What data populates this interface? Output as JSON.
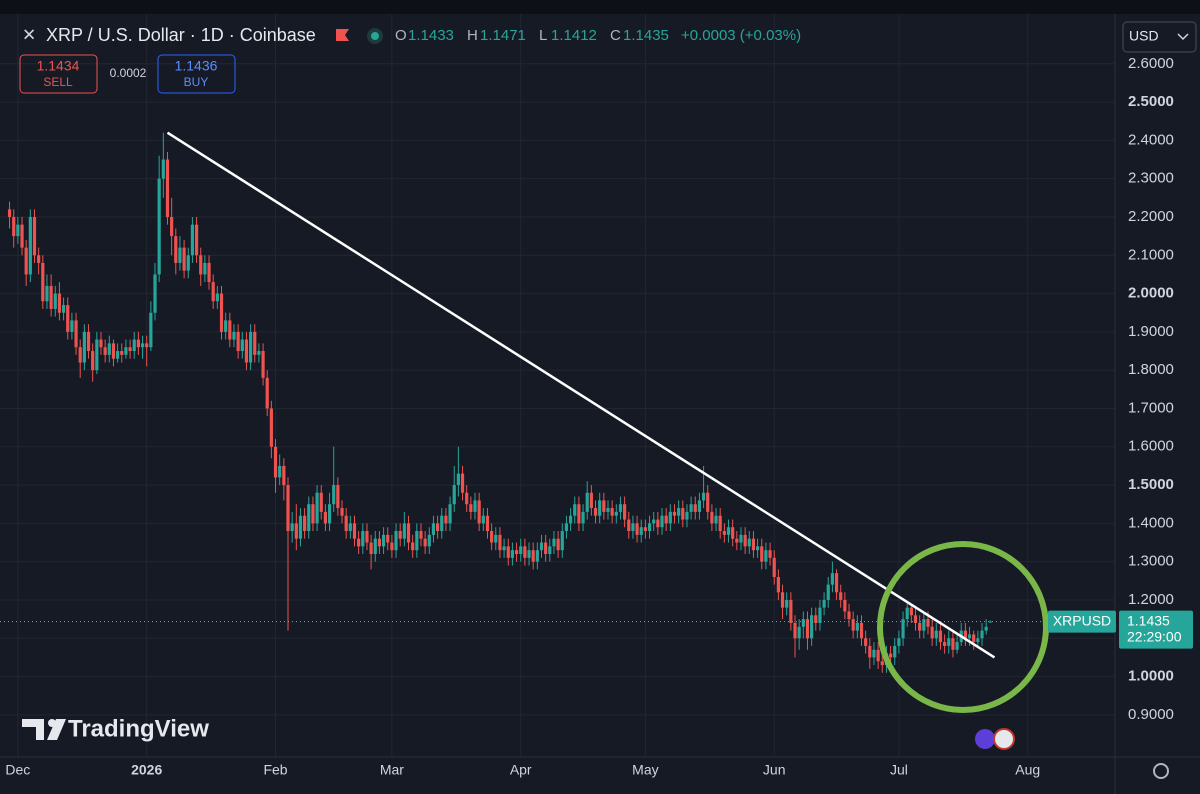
{
  "header": {
    "symbol": "XRP / U.S. Dollar · 1D · Coinbase",
    "ohlc_labels": [
      "O",
      "H",
      "L",
      "C"
    ],
    "change": "+0.0003 (+0.03%)"
  },
  "trade": {
    "sell_price": 1.1434,
    "sell_label": "SELL",
    "spread": 0.0002,
    "buy_price": 1.1436,
    "buy_label": "BUY"
  },
  "currency": "USD",
  "branding": "TradingView",
  "chart_data": {
    "type": "candlestick",
    "series": [
      {
        "name": "XRPUSD",
        "up_color": "#26a69a",
        "down_color": "#ef5350",
        "open": [
          2.22,
          2.2,
          2.15,
          2.18,
          2.12,
          2.05,
          2.2,
          2.1,
          2.08,
          1.98,
          2.02,
          1.96,
          2.0,
          1.95,
          1.97,
          1.9,
          1.93,
          1.86,
          1.82,
          1.9,
          1.85,
          1.8,
          1.88,
          1.86,
          1.84,
          1.87,
          1.83,
          1.85,
          1.84,
          1.86,
          1.85,
          1.88,
          1.86,
          1.87,
          1.86,
          1.95,
          2.05,
          2.3,
          2.35,
          2.2,
          2.15,
          2.08,
          2.12,
          2.06,
          2.1,
          2.18,
          2.1,
          2.05,
          2.08,
          2.03,
          1.98,
          2.0,
          1.9,
          1.93,
          1.88,
          1.9,
          1.85,
          1.88,
          1.82,
          1.9,
          1.84,
          1.85,
          1.78,
          1.7,
          1.6,
          1.52,
          1.55,
          1.5,
          1.38,
          1.4,
          1.36,
          1.42,
          1.38,
          1.45,
          1.4,
          1.48,
          1.43,
          1.4,
          1.45,
          1.5,
          1.44,
          1.42,
          1.38,
          1.4,
          1.36,
          1.34,
          1.38,
          1.35,
          1.32,
          1.36,
          1.34,
          1.37,
          1.35,
          1.33,
          1.38,
          1.36,
          1.4,
          1.35,
          1.33,
          1.38,
          1.36,
          1.34,
          1.37,
          1.4,
          1.38,
          1.42,
          1.4,
          1.45,
          1.5,
          1.53,
          1.48,
          1.45,
          1.43,
          1.46,
          1.4,
          1.42,
          1.38,
          1.35,
          1.37,
          1.33,
          1.34,
          1.31,
          1.33,
          1.32,
          1.34,
          1.31,
          1.33,
          1.3,
          1.33,
          1.35,
          1.32,
          1.34,
          1.36,
          1.33,
          1.38,
          1.4,
          1.42,
          1.45,
          1.4,
          1.43,
          1.48,
          1.44,
          1.42,
          1.46,
          1.43,
          1.44,
          1.42,
          1.43,
          1.45,
          1.41,
          1.38,
          1.4,
          1.37,
          1.39,
          1.38,
          1.4,
          1.41,
          1.39,
          1.42,
          1.4,
          1.43,
          1.42,
          1.44,
          1.41,
          1.43,
          1.45,
          1.43,
          1.46,
          1.48,
          1.43,
          1.4,
          1.42,
          1.38,
          1.37,
          1.39,
          1.36,
          1.35,
          1.37,
          1.34,
          1.36,
          1.33,
          1.34,
          1.3,
          1.33,
          1.31,
          1.26,
          1.22,
          1.18,
          1.2,
          1.14,
          1.1,
          1.13,
          1.15,
          1.1,
          1.16,
          1.14,
          1.18,
          1.2,
          1.24,
          1.27,
          1.22,
          1.2,
          1.17,
          1.15,
          1.12,
          1.14,
          1.1,
          1.08,
          1.05,
          1.07,
          1.04,
          1.03,
          1.06,
          1.05,
          1.08,
          1.1,
          1.15,
          1.18,
          1.16,
          1.14,
          1.12,
          1.15,
          1.13,
          1.1,
          1.12,
          1.09,
          1.08,
          1.1,
          1.07,
          1.09,
          1.12,
          1.1,
          1.11,
          1.09,
          1.1,
          1.12,
          1.1433
        ],
        "high": [
          2.24,
          2.22,
          2.2,
          2.2,
          2.14,
          2.22,
          2.22,
          2.12,
          2.1,
          2.05,
          2.05,
          2.02,
          2.03,
          1.99,
          1.99,
          1.95,
          1.95,
          1.88,
          1.92,
          1.92,
          1.87,
          1.9,
          1.9,
          1.88,
          1.89,
          1.88,
          1.87,
          1.87,
          1.88,
          1.88,
          1.9,
          1.9,
          1.89,
          1.89,
          1.98,
          2.08,
          2.36,
          2.42,
          2.37,
          2.25,
          2.17,
          2.15,
          2.14,
          2.12,
          2.2,
          2.2,
          2.12,
          2.1,
          2.1,
          2.05,
          2.02,
          2.02,
          1.95,
          1.95,
          1.92,
          1.92,
          1.9,
          1.9,
          1.92,
          1.92,
          1.87,
          1.87,
          1.8,
          1.72,
          1.62,
          1.58,
          1.57,
          1.52,
          1.43,
          1.45,
          1.44,
          1.44,
          1.47,
          1.47,
          1.5,
          1.5,
          1.45,
          1.48,
          1.6,
          1.52,
          1.46,
          1.44,
          1.42,
          1.42,
          1.38,
          1.4,
          1.4,
          1.37,
          1.38,
          1.38,
          1.39,
          1.39,
          1.37,
          1.4,
          1.4,
          1.43,
          1.42,
          1.37,
          1.4,
          1.4,
          1.38,
          1.39,
          1.42,
          1.42,
          1.44,
          1.44,
          1.47,
          1.55,
          1.6,
          1.55,
          1.5,
          1.47,
          1.48,
          1.48,
          1.44,
          1.44,
          1.4,
          1.39,
          1.39,
          1.36,
          1.36,
          1.35,
          1.35,
          1.36,
          1.36,
          1.35,
          1.35,
          1.35,
          1.37,
          1.37,
          1.36,
          1.38,
          1.38,
          1.4,
          1.42,
          1.44,
          1.47,
          1.47,
          1.45,
          1.51,
          1.5,
          1.46,
          1.48,
          1.48,
          1.46,
          1.46,
          1.45,
          1.47,
          1.47,
          1.43,
          1.42,
          1.42,
          1.41,
          1.41,
          1.42,
          1.43,
          1.43,
          1.44,
          1.44,
          1.45,
          1.45,
          1.46,
          1.46,
          1.45,
          1.47,
          1.47,
          1.48,
          1.55,
          1.5,
          1.45,
          1.44,
          1.44,
          1.4,
          1.41,
          1.41,
          1.38,
          1.39,
          1.39,
          1.38,
          1.38,
          1.36,
          1.36,
          1.35,
          1.35,
          1.33,
          1.28,
          1.24,
          1.22,
          1.22,
          1.16,
          1.15,
          1.17,
          1.17,
          1.18,
          1.18,
          1.2,
          1.22,
          1.26,
          1.3,
          1.28,
          1.24,
          1.22,
          1.19,
          1.17,
          1.16,
          1.16,
          1.12,
          1.1,
          1.09,
          1.09,
          1.06,
          1.08,
          1.08,
          1.1,
          1.12,
          1.17,
          1.19,
          1.19,
          1.18,
          1.16,
          1.17,
          1.17,
          1.15,
          1.14,
          1.14,
          1.11,
          1.12,
          1.12,
          1.11,
          1.14,
          1.14,
          1.13,
          1.12,
          1.12,
          1.14,
          1.15,
          1.1471
        ],
        "low": [
          2.17,
          2.12,
          2.13,
          2.1,
          2.02,
          2.03,
          2.08,
          2.05,
          1.96,
          1.96,
          1.94,
          1.94,
          1.93,
          1.93,
          1.88,
          1.88,
          1.84,
          1.78,
          1.8,
          1.83,
          1.77,
          1.79,
          1.84,
          1.82,
          1.82,
          1.81,
          1.82,
          1.82,
          1.83,
          1.83,
          1.83,
          1.84,
          1.83,
          1.81,
          1.85,
          1.93,
          2.03,
          2.25,
          2.18,
          2.1,
          2.05,
          2.06,
          2.04,
          2.04,
          2.08,
          2.08,
          2.02,
          2.03,
          2.01,
          1.96,
          1.96,
          1.88,
          1.88,
          1.86,
          1.86,
          1.83,
          1.83,
          1.8,
          1.8,
          1.82,
          1.82,
          1.76,
          1.68,
          1.57,
          1.48,
          1.5,
          1.46,
          1.12,
          1.35,
          1.33,
          1.34,
          1.36,
          1.36,
          1.38,
          1.38,
          1.41,
          1.38,
          1.38,
          1.43,
          1.42,
          1.4,
          1.36,
          1.36,
          1.34,
          1.32,
          1.32,
          1.33,
          1.28,
          1.3,
          1.32,
          1.32,
          1.33,
          1.31,
          1.31,
          1.34,
          1.34,
          1.33,
          1.31,
          1.31,
          1.34,
          1.32,
          1.32,
          1.35,
          1.36,
          1.36,
          1.38,
          1.38,
          1.43,
          1.47,
          1.46,
          1.43,
          1.41,
          1.41,
          1.38,
          1.38,
          1.36,
          1.33,
          1.33,
          1.31,
          1.31,
          1.29,
          1.29,
          1.3,
          1.3,
          1.29,
          1.29,
          1.28,
          1.28,
          1.31,
          1.3,
          1.3,
          1.32,
          1.31,
          1.31,
          1.36,
          1.38,
          1.4,
          1.38,
          1.38,
          1.41,
          1.42,
          1.4,
          1.4,
          1.41,
          1.41,
          1.4,
          1.4,
          1.41,
          1.39,
          1.36,
          1.36,
          1.35,
          1.35,
          1.36,
          1.36,
          1.38,
          1.37,
          1.37,
          1.38,
          1.38,
          1.4,
          1.4,
          1.39,
          1.39,
          1.41,
          1.41,
          1.41,
          1.44,
          1.41,
          1.38,
          1.38,
          1.36,
          1.35,
          1.35,
          1.34,
          1.33,
          1.33,
          1.32,
          1.32,
          1.31,
          1.31,
          1.28,
          1.28,
          1.29,
          1.24,
          1.2,
          1.15,
          1.16,
          1.12,
          1.05,
          1.07,
          1.1,
          1.07,
          1.08,
          1.12,
          1.12,
          1.16,
          1.18,
          1.22,
          1.2,
          1.18,
          1.15,
          1.13,
          1.1,
          1.1,
          1.08,
          1.06,
          1.02,
          1.03,
          1.02,
          1.01,
          1.01,
          1.03,
          1.03,
          1.06,
          1.08,
          1.13,
          1.14,
          1.12,
          1.1,
          1.1,
          1.11,
          1.08,
          1.08,
          1.07,
          1.06,
          1.06,
          1.05,
          1.06,
          1.08,
          1.08,
          1.08,
          1.07,
          1.08,
          1.08,
          1.11,
          1.1412
        ],
        "close": [
          2.2,
          2.15,
          2.18,
          2.12,
          2.05,
          2.2,
          2.1,
          2.08,
          1.98,
          2.02,
          1.96,
          2.0,
          1.95,
          1.97,
          1.9,
          1.93,
          1.86,
          1.82,
          1.9,
          1.85,
          1.8,
          1.88,
          1.86,
          1.84,
          1.87,
          1.83,
          1.85,
          1.84,
          1.86,
          1.85,
          1.88,
          1.86,
          1.87,
          1.86,
          1.95,
          2.05,
          2.3,
          2.35,
          2.2,
          2.15,
          2.08,
          2.12,
          2.06,
          2.1,
          2.18,
          2.1,
          2.05,
          2.08,
          2.03,
          1.98,
          2.0,
          1.9,
          1.93,
          1.88,
          1.9,
          1.85,
          1.88,
          1.82,
          1.9,
          1.84,
          1.85,
          1.78,
          1.7,
          1.6,
          1.52,
          1.55,
          1.5,
          1.38,
          1.4,
          1.36,
          1.42,
          1.38,
          1.45,
          1.4,
          1.48,
          1.43,
          1.4,
          1.45,
          1.5,
          1.44,
          1.42,
          1.38,
          1.4,
          1.36,
          1.34,
          1.38,
          1.35,
          1.32,
          1.36,
          1.34,
          1.37,
          1.35,
          1.33,
          1.38,
          1.36,
          1.4,
          1.35,
          1.33,
          1.38,
          1.36,
          1.34,
          1.37,
          1.4,
          1.38,
          1.42,
          1.4,
          1.45,
          1.5,
          1.53,
          1.48,
          1.45,
          1.43,
          1.46,
          1.4,
          1.42,
          1.38,
          1.35,
          1.37,
          1.33,
          1.34,
          1.31,
          1.33,
          1.32,
          1.34,
          1.31,
          1.33,
          1.3,
          1.33,
          1.35,
          1.32,
          1.34,
          1.36,
          1.33,
          1.38,
          1.4,
          1.42,
          1.45,
          1.4,
          1.43,
          1.48,
          1.44,
          1.42,
          1.46,
          1.43,
          1.44,
          1.42,
          1.43,
          1.45,
          1.41,
          1.38,
          1.4,
          1.37,
          1.39,
          1.38,
          1.4,
          1.41,
          1.39,
          1.42,
          1.4,
          1.43,
          1.42,
          1.44,
          1.41,
          1.43,
          1.45,
          1.43,
          1.46,
          1.48,
          1.43,
          1.4,
          1.42,
          1.38,
          1.37,
          1.39,
          1.36,
          1.35,
          1.37,
          1.34,
          1.36,
          1.33,
          1.34,
          1.3,
          1.33,
          1.31,
          1.26,
          1.22,
          1.18,
          1.2,
          1.14,
          1.1,
          1.13,
          1.15,
          1.1,
          1.16,
          1.14,
          1.18,
          1.2,
          1.24,
          1.27,
          1.22,
          1.2,
          1.17,
          1.15,
          1.12,
          1.14,
          1.1,
          1.08,
          1.05,
          1.07,
          1.04,
          1.03,
          1.06,
          1.05,
          1.08,
          1.1,
          1.15,
          1.18,
          1.16,
          1.14,
          1.12,
          1.15,
          1.13,
          1.1,
          1.12,
          1.09,
          1.08,
          1.1,
          1.07,
          1.09,
          1.12,
          1.1,
          1.11,
          1.09,
          1.1,
          1.12,
          1.13,
          1.1435
        ]
      }
    ],
    "last_price": 1.1435,
    "countdown": "22:29:00",
    "xlim": [
      -2.3,
      266
    ],
    "xticks": [
      {
        "value": 2,
        "label": "Dec"
      },
      {
        "value": 33,
        "label": "2026"
      },
      {
        "value": 64,
        "label": "Feb"
      },
      {
        "value": 92,
        "label": "Mar"
      },
      {
        "value": 123,
        "label": "Apr"
      },
      {
        "value": 153,
        "label": "May"
      },
      {
        "value": 184,
        "label": "Jun"
      },
      {
        "value": 214,
        "label": "Jul"
      },
      {
        "value": 245,
        "label": "Aug"
      }
    ],
    "ylim": [
      0.79,
      2.73
    ],
    "yticks": [
      {
        "value": 0.9,
        "label": "0.9000"
      },
      {
        "value": 1.0,
        "label": "1.0000"
      },
      {
        "value": 1.1,
        "label": "1.1000"
      },
      {
        "value": 1.2,
        "label": "1.2000"
      },
      {
        "value": 1.3,
        "label": "1.3000"
      },
      {
        "value": 1.4,
        "label": "1.4000"
      },
      {
        "value": 1.5,
        "label": "1.5000"
      },
      {
        "value": 1.6,
        "label": "1.6000"
      },
      {
        "value": 1.7,
        "label": "1.7000"
      },
      {
        "value": 1.8,
        "label": "1.8000"
      },
      {
        "value": 1.9,
        "label": "1.9000"
      },
      {
        "value": 2.0,
        "label": "2.0000"
      },
      {
        "value": 2.1,
        "label": "2.1000"
      },
      {
        "value": 2.2,
        "label": "2.2000"
      },
      {
        "value": 2.3,
        "label": "2.3000"
      },
      {
        "value": 2.4,
        "label": "2.4000"
      },
      {
        "value": 2.5,
        "label": "2.5000"
      },
      {
        "value": 2.6,
        "label": "2.6000"
      }
    ],
    "trendline": {
      "start": [
        38,
        2.42
      ],
      "end": [
        237,
        1.05
      ]
    },
    "grid": true
  }
}
